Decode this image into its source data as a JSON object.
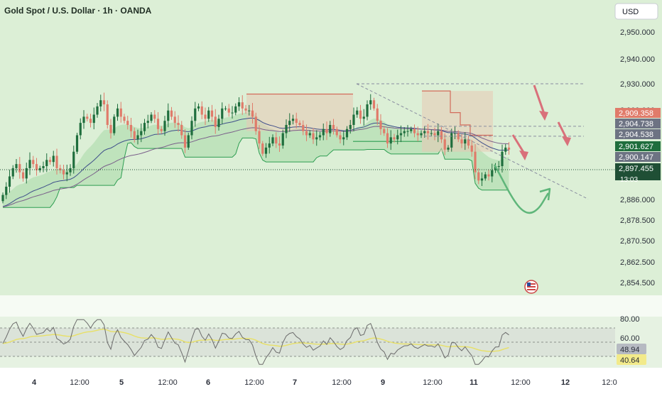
{
  "header": {
    "title": "Gold Spot / U.S. Dollar · 1h · OANDA",
    "currency": "USD"
  },
  "colors": {
    "background": "#dcefd6",
    "up": "#1f6e3d",
    "down": "#e07b6a",
    "axis_text": "#2a2e39",
    "rsi_line": "#6b6b6b",
    "rsi_ma": "#e8e066",
    "annotation_red": "#d9707a",
    "annotation_green": "#5fb67a"
  },
  "price_labels": [
    {
      "value": "2,909.358",
      "color": "#e07b6a"
    },
    {
      "value": "2,904.738",
      "color": "#6d7383"
    },
    {
      "value": "2,904.538",
      "color": "#6d7383"
    },
    {
      "value": "2,901.627",
      "color": "#1f6e3d"
    },
    {
      "value": "2,900.147",
      "color": "#6d7383"
    },
    {
      "value": "2,897.455",
      "color": "#1f4f35"
    }
  ],
  "countdown": "13:03",
  "rsi": {
    "labels": [
      "80.00",
      "60.00",
      "48.94",
      "40.64"
    ],
    "value_rsi": "48.94",
    "value_ma": "40.64"
  },
  "chart_data": {
    "type": "candlestick",
    "title": "Gold Spot / U.S. Dollar · 1h · OANDA",
    "y_ticks": [
      "2,950.000",
      "2,940.000",
      "2,930.000",
      "2,909.000",
      "2,886.000",
      "2,878.500",
      "2,870.500",
      "2,862.500",
      "2,854.500"
    ],
    "x_ticks": [
      "4",
      "12:00",
      "5",
      "12:00",
      "6",
      "12:00",
      "7",
      "12:00",
      "9",
      "12:00",
      "11",
      "12:00",
      "12",
      "12:0"
    ],
    "ylim": [
      2850,
      2955
    ],
    "current_price": 2897.455,
    "close": [
      2876,
      2880,
      2885,
      2889,
      2891,
      2887,
      2884,
      2889,
      2893,
      2891,
      2888,
      2889,
      2890,
      2893,
      2892,
      2895,
      2889,
      2888,
      2886,
      2887,
      2889,
      2897,
      2905,
      2911,
      2914,
      2913,
      2911,
      2915,
      2919,
      2922,
      2920,
      2910,
      2906,
      2914,
      2918,
      2914,
      2912,
      2910,
      2907,
      2903,
      2905,
      2907,
      2911,
      2912,
      2915,
      2913,
      2908,
      2907,
      2912,
      2917,
      2914,
      2911,
      2910,
      2905,
      2899,
      2905,
      2912,
      2918,
      2919,
      2915,
      2913,
      2917,
      2914,
      2909,
      2913,
      2918,
      2918,
      2916,
      2916,
      2919,
      2921,
      2918,
      2917,
      2917,
      2914,
      2907,
      2901,
      2896,
      2899,
      2901,
      2904,
      2901,
      2900,
      2906,
      2910,
      2912,
      2913,
      2911,
      2910,
      2907,
      2905,
      2906,
      2903,
      2904,
      2905,
      2908,
      2906,
      2910,
      2908,
      2905,
      2903,
      2904,
      2908,
      2910,
      2915,
      2917,
      2913,
      2914,
      2920,
      2922,
      2918,
      2912,
      2908,
      2906,
      2901,
      2904,
      2903,
      2905,
      2906,
      2907,
      2907,
      2908,
      2906,
      2905,
      2906,
      2907,
      2906,
      2906,
      2905,
      2907,
      2903,
      2898,
      2899,
      2906,
      2906,
      2903,
      2901,
      2903,
      2900,
      2897,
      2887,
      2883,
      2884,
      2886,
      2885,
      2888,
      2890,
      2890,
      2897,
      2899,
      2898
    ],
    "annotations": {
      "resistance_dashed": [
        2930.0,
        2909.358,
        2904.538
      ],
      "arrows_down": 3,
      "projected_path": "down-then-up curved arrow"
    }
  }
}
